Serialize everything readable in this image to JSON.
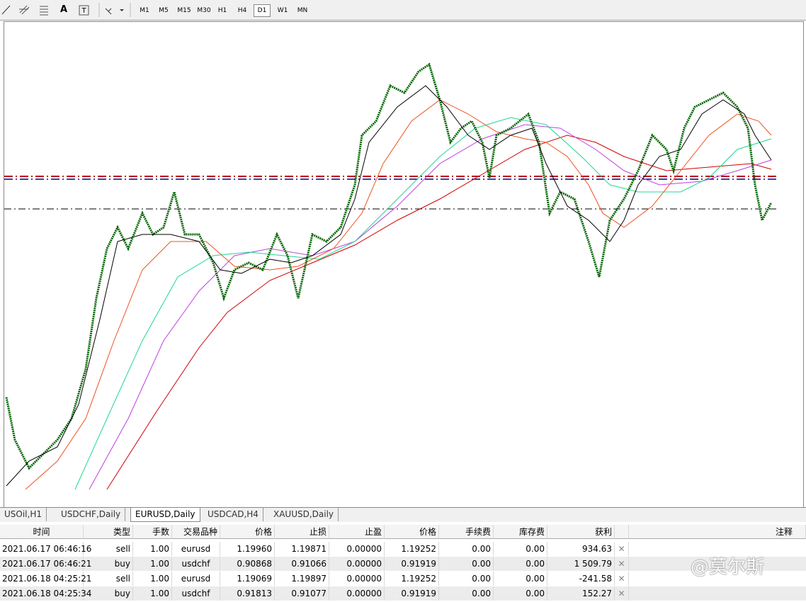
{
  "toolbar": {
    "text_tool": "A",
    "timeframes": [
      "M1",
      "M5",
      "M15",
      "M30",
      "H1",
      "H4",
      "D1",
      "W1",
      "MN"
    ],
    "active_timeframe": "D1"
  },
  "tabs": {
    "items": [
      "USOil,H1",
      "USDCHF,Daily",
      "EURUSD,Daily",
      "USDCAD,H4",
      "XAUUSD,Daily"
    ],
    "active": "EURUSD,Daily"
  },
  "table": {
    "headers": [
      "时间",
      "类型",
      "手数",
      "交易品种",
      "价格",
      "止损",
      "止盈",
      "价格",
      "手续费",
      "库存费",
      "获利",
      "注释"
    ],
    "rows": [
      [
        "2021.06.17 06:46:16",
        "sell",
        "1.00",
        "eurusd",
        "1.19960",
        "1.19871",
        "0.00000",
        "1.19252",
        "0.00",
        "0.00",
        "934.63"
      ],
      [
        "2021.06.17 06:46:21",
        "buy",
        "1.00",
        "usdchf",
        "0.90868",
        "0.91066",
        "0.00000",
        "0.91919",
        "0.00",
        "0.00",
        "1 509.79"
      ],
      [
        "2021.06.18 04:25:21",
        "sell",
        "1.00",
        "eurusd",
        "1.19069",
        "1.19897",
        "0.00000",
        "1.19252",
        "0.00",
        "0.00",
        "-241.58"
      ],
      [
        "2021.06.18 04:25:34",
        "buy",
        "1.00",
        "usdchf",
        "0.91813",
        "0.91077",
        "0.00000",
        "0.91919",
        "0.00",
        "0.00",
        "152.27"
      ]
    ]
  },
  "watermark": "@莫尔斯"
}
